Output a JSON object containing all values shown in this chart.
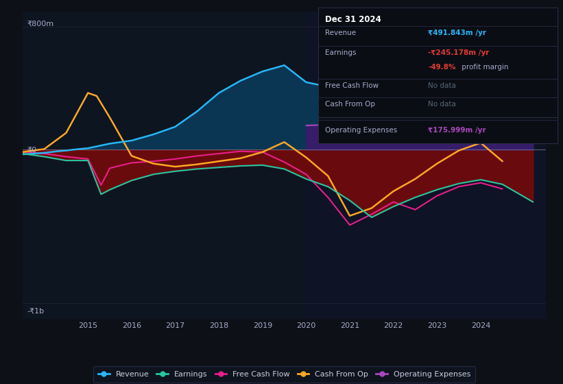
{
  "bg_color": "#0d1117",
  "plot_bg_color": "#0d1520",
  "y_label_top": "₹800m",
  "y_label_zero": "₹0",
  "y_label_bottom": "-₹1b",
  "ylim": [
    -1100,
    900
  ],
  "xlim_start": 2013.5,
  "xlim_end": 2025.5,
  "x_ticks": [
    2015,
    2016,
    2017,
    2018,
    2019,
    2020,
    2021,
    2022,
    2023,
    2024
  ],
  "revenue_color": "#29b6f6",
  "revenue_fill_color": "#0a3a5a",
  "earnings_color": "#26c6a0",
  "fcf_color": "#e91e8c",
  "cashfromop_color": "#ffa726",
  "opex_color": "#ab47bc",
  "opex_fill_color": "#3d1a6e",
  "earnings_fill_color": "#7a0a0a",
  "info_box": {
    "title": "Dec 31 2024",
    "revenue_label": "Revenue",
    "revenue_value": "₹491.843m /yr",
    "revenue_color": "#29b6f6",
    "earnings_label": "Earnings",
    "earnings_value": "-₹245.178m /yr",
    "earnings_color": "#e53935",
    "margin_value": "-49.8%",
    "margin_text": " profit margin",
    "margin_color": "#e53935",
    "fcf_label": "Free Cash Flow",
    "fcf_value": "No data",
    "cashfromop_label": "Cash From Op",
    "cashfromop_value": "No data",
    "opex_label": "Operating Expenses",
    "opex_value": "₹175.999m /yr",
    "opex_color": "#ab47bc"
  },
  "revenue": {
    "x": [
      2013.5,
      2014.0,
      2014.3,
      2014.5,
      2014.8,
      2015.0,
      2015.5,
      2016.0,
      2016.5,
      2017.0,
      2017.5,
      2018.0,
      2018.5,
      2019.0,
      2019.5,
      2020.0,
      2020.5,
      2021.0,
      2021.5,
      2022.0,
      2022.5,
      2023.0,
      2023.5,
      2024.0,
      2024.5,
      2025.2
    ],
    "y": [
      -30,
      -20,
      -10,
      -5,
      5,
      10,
      40,
      60,
      100,
      150,
      250,
      370,
      450,
      510,
      550,
      440,
      410,
      460,
      500,
      570,
      700,
      800,
      710,
      650,
      630,
      520
    ]
  },
  "earnings": {
    "x": [
      2013.5,
      2014.0,
      2014.5,
      2015.0,
      2015.3,
      2015.5,
      2016.0,
      2016.5,
      2017.0,
      2017.5,
      2018.0,
      2018.5,
      2019.0,
      2019.5,
      2020.0,
      2020.5,
      2021.0,
      2021.5,
      2022.0,
      2022.5,
      2023.0,
      2023.5,
      2024.0,
      2024.5,
      2025.2
    ],
    "y": [
      -25,
      -45,
      -70,
      -70,
      -290,
      -260,
      -200,
      -160,
      -140,
      -125,
      -115,
      -105,
      -100,
      -125,
      -190,
      -240,
      -330,
      -440,
      -370,
      -310,
      -260,
      -220,
      -195,
      -225,
      -340
    ]
  },
  "fcf": {
    "x": [
      2013.5,
      2014.0,
      2014.5,
      2015.0,
      2015.3,
      2015.5,
      2016.0,
      2016.5,
      2017.0,
      2017.5,
      2018.0,
      2018.5,
      2019.0,
      2019.5,
      2020.0,
      2020.5,
      2021.0,
      2021.5,
      2022.0,
      2022.5,
      2023.0,
      2023.5,
      2024.0,
      2024.5
    ],
    "y": [
      -15,
      -25,
      -45,
      -60,
      -230,
      -120,
      -85,
      -75,
      -60,
      -40,
      -25,
      -10,
      -15,
      -80,
      -160,
      -310,
      -490,
      -420,
      -340,
      -390,
      -300,
      -240,
      -215,
      -255
    ]
  },
  "cashfromop": {
    "x": [
      2013.5,
      2014.0,
      2014.5,
      2015.0,
      2015.2,
      2015.5,
      2016.0,
      2016.5,
      2017.0,
      2017.5,
      2018.0,
      2018.5,
      2019.0,
      2019.5,
      2020.0,
      2020.5,
      2021.0,
      2021.5,
      2022.0,
      2022.5,
      2023.0,
      2023.5,
      2024.0,
      2024.5
    ],
    "y": [
      -15,
      5,
      110,
      370,
      350,
      210,
      -40,
      -90,
      -110,
      -95,
      -75,
      -55,
      -15,
      50,
      -50,
      -170,
      -430,
      -380,
      -270,
      -190,
      -90,
      -5,
      45,
      -75
    ]
  },
  "opex": {
    "x": [
      2020.0,
      2020.5,
      2021.0,
      2021.5,
      2022.0,
      2022.5,
      2023.0,
      2023.5,
      2024.0,
      2024.5,
      2025.2
    ],
    "y": [
      158,
      163,
      168,
      173,
      178,
      182,
      183,
      192,
      198,
      203,
      208
    ]
  },
  "highlight_x_start": 2020.0,
  "highlight_x_end": 2025.5,
  "legend_labels": [
    "Revenue",
    "Earnings",
    "Free Cash Flow",
    "Cash From Op",
    "Operating Expenses"
  ]
}
